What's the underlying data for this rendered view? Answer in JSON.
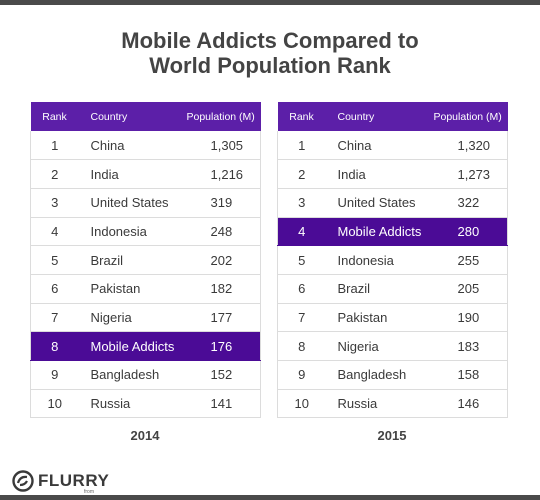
{
  "title_line1": "Mobile Addicts Compared to",
  "title_line2": "World Population Rank",
  "brand": {
    "name": "FLURRY",
    "sub": "from YAHOO!"
  },
  "colors": {
    "header": "#5c1fa8",
    "highlight": "#4b0b96"
  },
  "chart_data": [
    {
      "type": "table",
      "caption": "2014",
      "columns": [
        "Rank",
        "Country",
        "Population (M)"
      ],
      "rows": [
        {
          "rank": "1",
          "country": "China",
          "pop": "1,305",
          "highlight": false
        },
        {
          "rank": "2",
          "country": "India",
          "pop": "1,216",
          "highlight": false
        },
        {
          "rank": "3",
          "country": "United States",
          "pop": "319",
          "highlight": false
        },
        {
          "rank": "4",
          "country": "Indonesia",
          "pop": "248",
          "highlight": false
        },
        {
          "rank": "5",
          "country": "Brazil",
          "pop": "202",
          "highlight": false
        },
        {
          "rank": "6",
          "country": "Pakistan",
          "pop": "182",
          "highlight": false
        },
        {
          "rank": "7",
          "country": "Nigeria",
          "pop": "177",
          "highlight": false
        },
        {
          "rank": "8",
          "country": "Mobile Addicts",
          "pop": "176",
          "highlight": true
        },
        {
          "rank": "9",
          "country": "Bangladesh",
          "pop": "152",
          "highlight": false
        },
        {
          "rank": "10",
          "country": "Russia",
          "pop": "141",
          "highlight": false
        }
      ]
    },
    {
      "type": "table",
      "caption": "2015",
      "columns": [
        "Rank",
        "Country",
        "Population (M)"
      ],
      "rows": [
        {
          "rank": "1",
          "country": "China",
          "pop": "1,320",
          "highlight": false
        },
        {
          "rank": "2",
          "country": "India",
          "pop": "1,273",
          "highlight": false
        },
        {
          "rank": "3",
          "country": "United States",
          "pop": "322",
          "highlight": false
        },
        {
          "rank": "4",
          "country": "Mobile Addicts",
          "pop": "280",
          "highlight": true
        },
        {
          "rank": "5",
          "country": "Indonesia",
          "pop": "255",
          "highlight": false
        },
        {
          "rank": "6",
          "country": "Brazil",
          "pop": "205",
          "highlight": false
        },
        {
          "rank": "7",
          "country": "Pakistan",
          "pop": "190",
          "highlight": false
        },
        {
          "rank": "8",
          "country": "Nigeria",
          "pop": "183",
          "highlight": false
        },
        {
          "rank": "9",
          "country": "Bangladesh",
          "pop": "158",
          "highlight": false
        },
        {
          "rank": "10",
          "country": "Russia",
          "pop": "146",
          "highlight": false
        }
      ]
    }
  ]
}
